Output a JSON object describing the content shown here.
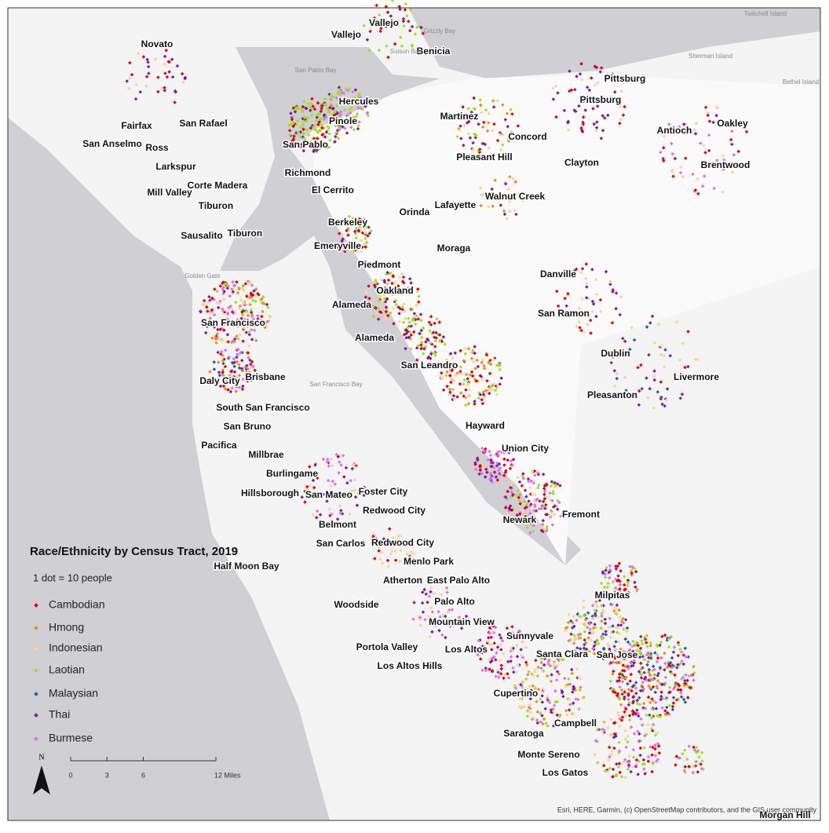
{
  "map": {
    "title": "Race/Ethnicity by Census Tract, 2019",
    "dot_note": "1 dot = 10 people",
    "legend": [
      {
        "name": "Cambodian",
        "color": "#e00000"
      },
      {
        "name": "Hmong",
        "color": "#f08c1e"
      },
      {
        "name": "Indonesian",
        "color": "#fcd29a"
      },
      {
        "name": "Laotian",
        "color": "#9ee02a"
      },
      {
        "name": "Malaysian",
        "color": "#1f5fa8"
      },
      {
        "name": "Thai",
        "color": "#7a1fa0"
      },
      {
        "name": "Burmese",
        "color": "#df70f0"
      }
    ],
    "north": "N",
    "scale_bar": {
      "ticks": [
        0,
        3,
        6,
        {
          "value": 12,
          "label": "12 Miles"
        }
      ]
    },
    "places": [
      "Novato",
      "Vallejo",
      "Vallejo",
      "Benicia",
      "Pittsburg",
      "Pittsburg",
      "Hercules",
      "Pinole",
      "Martinez",
      "Concord",
      "Oakley",
      "Antioch",
      "Fairfax",
      "San Rafael",
      "San Anselmo",
      "Ross",
      "San Pablo",
      "Pleasant Hill",
      "Clayton",
      "Brentwood",
      "Larkspur",
      "Richmond",
      "Corte Madera",
      "El Cerrito",
      "Walnut Creek",
      "Mill Valley",
      "Tiburon",
      "Lafayette",
      "Orinda",
      "Berkeley",
      "Sausalito",
      "Tiburon",
      "Emeryville",
      "Moraga",
      "Piedmont",
      "Danville",
      "Oakland",
      "Alameda",
      "San Ramon",
      "San Francisco",
      "Alameda",
      "Dublin",
      "San Leandro",
      "Daly City",
      "Brisbane",
      "Livermore",
      "Pleasanton",
      "South San Francisco",
      "San Bruno",
      "Hayward",
      "Pacifica",
      "Union City",
      "Millbrae",
      "Burlingame",
      "Foster City",
      "Hillsborough",
      "San Mateo",
      "Redwood City",
      "Fremont",
      "Newark",
      "Belmont",
      "San Carlos",
      "Redwood City",
      "Half Moon Bay",
      "Menlo Park",
      "Atherton",
      "East Palo Alto",
      "Milpitas",
      "Woodside",
      "Palo Alto",
      "Mountain View",
      "Sunnyvale",
      "Los Altos",
      "Portola Valley",
      "Santa Clara",
      "San Jose",
      "Los Altos Hills",
      "Cupertino",
      "Campbell",
      "Saratoga",
      "Monte Sereno",
      "Los Gatos",
      "Morgan Hill"
    ],
    "water_labels": [
      "San Pablo Bay",
      "San Francisco Bay",
      "Golden Gate",
      "Suisun Bay",
      "Grizzly Bay",
      "Sherman Island",
      "Twitchell Island",
      "Bethel Island"
    ],
    "attribution": "Esri, HERE, Garmin, (c) OpenStreetMap contributors, and the GIS user community"
  }
}
